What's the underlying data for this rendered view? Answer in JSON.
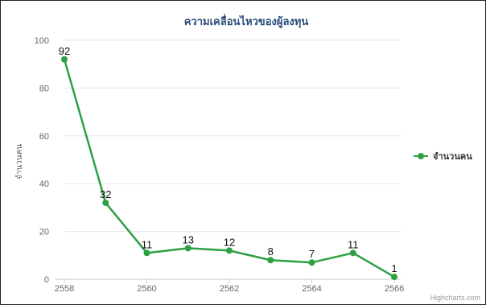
{
  "chart_data": {
    "type": "line",
    "title": "ความเคลื่อนไหวของผู้ลงทุน",
    "xlabel": "",
    "ylabel": "จำนวนคน",
    "x": [
      2558,
      2559,
      2560,
      2561,
      2562,
      2563,
      2564,
      2565,
      2566
    ],
    "xticks": [
      "2558",
      "2560",
      "2562",
      "2564",
      "2566"
    ],
    "yticks": [
      "0",
      "20",
      "40",
      "60",
      "80",
      "100"
    ],
    "xlim": [
      2558,
      2566
    ],
    "ylim": [
      0,
      100
    ],
    "grid": true,
    "legend_position": "right",
    "series": [
      {
        "name": "จำนวนคน",
        "color": "#2ea043",
        "values": [
          92,
          32,
          11,
          13,
          12,
          8,
          7,
          11,
          1
        ]
      }
    ],
    "credits": "Highcharts.com"
  }
}
